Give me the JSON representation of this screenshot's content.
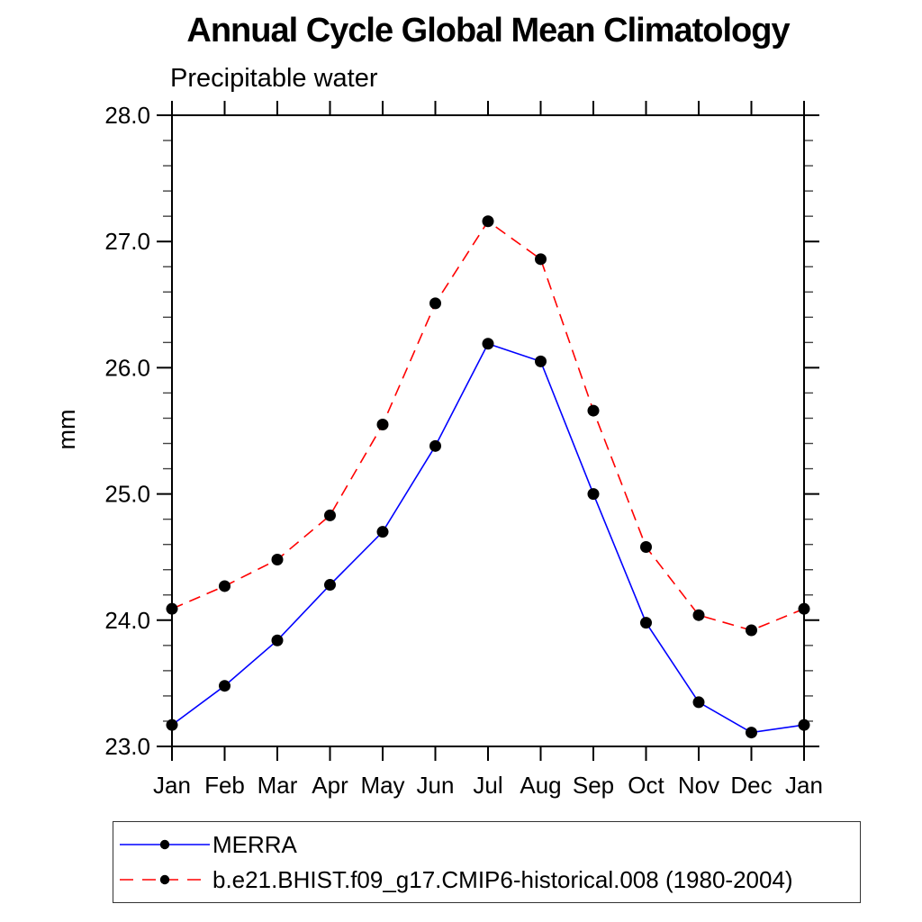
{
  "chart_data": {
    "type": "line",
    "title": "Annual Cycle Global Mean Climatology",
    "subtitle": "Precipitable water",
    "ylabel": "mm",
    "categories": [
      "Jan",
      "Feb",
      "Mar",
      "Apr",
      "May",
      "Jun",
      "Jul",
      "Aug",
      "Sep",
      "Oct",
      "Nov",
      "Dec",
      "Jan"
    ],
    "ylim": [
      23.0,
      28.0
    ],
    "yticks": [
      23.0,
      24.0,
      25.0,
      26.0,
      27.0,
      28.0
    ],
    "ytick_labels": [
      "23.0",
      "24.0",
      "25.0",
      "26.0",
      "27.0",
      "28.0"
    ],
    "ytick_minor_step": 0.2,
    "grid": false,
    "frame": "boxed-outward-ticks",
    "legend_position": "bottom-left-box",
    "axis_color": "#000000",
    "series": [
      {
        "name": "MERRA",
        "color": "#0000ff",
        "line_style": "solid",
        "marker": "filled-circle",
        "marker_color": "#000000",
        "values": [
          23.17,
          23.48,
          23.84,
          24.28,
          24.7,
          25.38,
          26.19,
          26.05,
          25.0,
          23.98,
          23.35,
          23.11,
          23.17
        ]
      },
      {
        "name": "b.e21.BHIST.f09_g17.CMIP6-historical.008 (1980-2004)",
        "color": "#ff0000",
        "line_style": "dashed",
        "marker": "filled-circle",
        "marker_color": "#000000",
        "values": [
          24.09,
          24.27,
          24.48,
          24.83,
          25.55,
          26.51,
          27.16,
          26.86,
          25.66,
          24.58,
          24.04,
          23.92,
          24.09
        ]
      }
    ]
  }
}
